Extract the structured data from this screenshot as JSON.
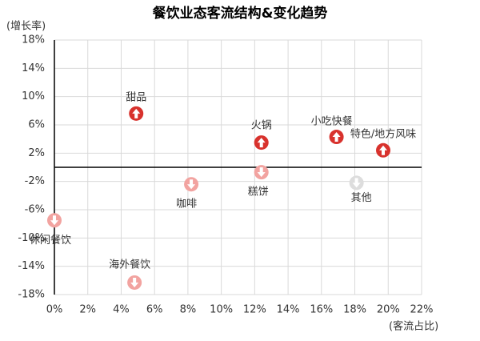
{
  "chart_data": {
    "type": "scatter",
    "title": "餐饮业态客流结构&变化趋势",
    "y_label": "(增长率)",
    "x_label": "(客流占比)",
    "categories": [
      "甜品",
      "火锅",
      "小吃快餐",
      "特色/地方风味",
      "糕饼",
      "咖啡",
      "其他",
      "休闲餐饮",
      "海外餐饮"
    ],
    "x": [
      4.9,
      12.4,
      16.9,
      19.7,
      12.4,
      8.2,
      18.1,
      -0.0,
      4.8
    ],
    "values": [
      7.6,
      3.5,
      4.3,
      2.4,
      -0.7,
      -2.4,
      -2.2,
      -7.5,
      -16.3
    ],
    "colors": [
      "#d8322d",
      "#d8322d",
      "#d8322d",
      "#d8322d",
      "#f2a3a0",
      "#f2a3a0",
      "#dddddd",
      "#f2a3a0",
      "#f2a3a0"
    ],
    "xlim": [
      0,
      22
    ],
    "ylim": [
      -18,
      18
    ],
    "xticks": [
      {
        "value": 0,
        "label": "0%"
      },
      {
        "value": 2,
        "label": "2%"
      },
      {
        "value": 4,
        "label": "4%"
      },
      {
        "value": 6,
        "label": "6%"
      },
      {
        "value": 8,
        "label": "8%"
      },
      {
        "value": 10,
        "label": "10%"
      },
      {
        "value": 12,
        "label": "12%"
      },
      {
        "value": 14,
        "label": "14%"
      },
      {
        "value": 16,
        "label": "16%"
      },
      {
        "value": 18,
        "label": "18%"
      },
      {
        "value": 20,
        "label": "20%"
      },
      {
        "value": 22,
        "label": "22%"
      }
    ],
    "yticks": [
      {
        "value": 18,
        "label": "18%"
      },
      {
        "value": 14,
        "label": "14%"
      },
      {
        "value": 10,
        "label": "10%"
      },
      {
        "value": 6,
        "label": "6%"
      },
      {
        "value": 2,
        "label": "2%"
      },
      {
        "value": -2,
        "label": "-2%"
      },
      {
        "value": -6,
        "label": "-6%"
      },
      {
        "value": -10,
        "label": "-10%"
      },
      {
        "value": -14,
        "label": "-14%"
      },
      {
        "value": -18,
        "label": "-18%"
      }
    ],
    "grid": true
  }
}
